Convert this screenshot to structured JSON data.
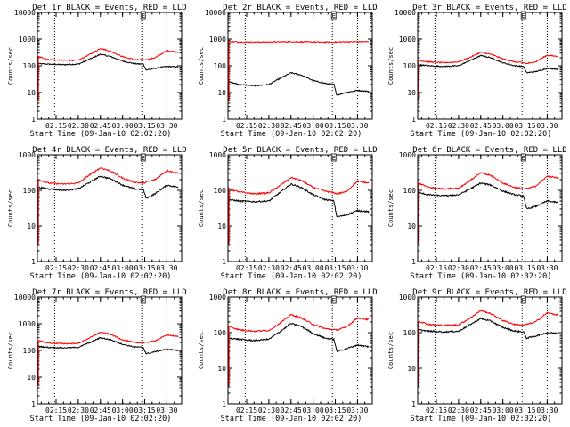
{
  "figure": {
    "colors": {
      "events": "#000000",
      "lld": "#ff0000",
      "background": "#ffffff",
      "axes": "#000000"
    }
  },
  "chart_data": [
    {
      "type": "line",
      "title": "Det 1r BLACK = Events, RED = LLD",
      "xlabel": "Start Time (09-Jan-10 02:02:20)",
      "ylabel": "Counts/sec",
      "ylim": [
        1,
        10000
      ],
      "yscale": "log",
      "xlim": [
        "02:02:20",
        "03:40"
      ],
      "xticks": [
        "02:15",
        "02:30",
        "02:45",
        "03:00",
        "03:15",
        "03:30"
      ],
      "ytick_labels": [
        "1",
        "10",
        "100",
        "1000",
        "10000"
      ],
      "vlines": [
        "02:14",
        "03:13",
        "03:30"
      ],
      "markers": [
        "E"
      ],
      "series": [
        {
          "name": "Events",
          "color": "#000000",
          "x": [
            "02:03",
            "02:10",
            "02:20",
            "02:30",
            "02:38",
            "02:45",
            "02:52",
            "03:00",
            "03:08",
            "03:14",
            "03:16",
            "03:22",
            "03:30",
            "03:38"
          ],
          "values": [
            120,
            115,
            110,
            115,
            180,
            270,
            220,
            150,
            120,
            115,
            70,
            80,
            95,
            90
          ]
        },
        {
          "name": "LLD",
          "color": "#ff0000",
          "x": [
            "02:03",
            "02:10",
            "02:20",
            "02:30",
            "02:38",
            "02:45",
            "02:52",
            "03:00",
            "03:08",
            "03:14",
            "03:16",
            "03:22",
            "03:30",
            "03:38"
          ],
          "values": [
            220,
            170,
            160,
            160,
            270,
            450,
            350,
            220,
            170,
            165,
            170,
            200,
            370,
            320
          ]
        }
      ]
    },
    {
      "type": "line",
      "title": "Det 2r BLACK = Events, RED = LLD",
      "xlabel": "Start Time (09-Jan-10 02:02:20)",
      "ylabel": "Counts/sec",
      "ylim": [
        1,
        10000
      ],
      "yscale": "log",
      "xlim": [
        "02:02:20",
        "03:40"
      ],
      "xticks": [
        "02:15",
        "02:30",
        "02:45",
        "03:00",
        "03:15",
        "03:30"
      ],
      "ytick_labels": [
        "1",
        "10",
        "100",
        "1000",
        "10000"
      ],
      "vlines": [
        "02:14",
        "03:13",
        "03:30"
      ],
      "markers": [
        "E"
      ],
      "series": [
        {
          "name": "Events",
          "color": "#000000",
          "x": [
            "02:03",
            "02:10",
            "02:20",
            "02:30",
            "02:38",
            "02:45",
            "02:52",
            "03:00",
            "03:08",
            "03:14",
            "03:16",
            "03:22",
            "03:30",
            "03:38"
          ],
          "values": [
            25,
            20,
            18,
            20,
            35,
            55,
            45,
            28,
            22,
            20,
            8,
            10,
            12,
            11
          ]
        },
        {
          "name": "LLD",
          "color": "#ff0000",
          "x": [
            "02:03",
            "02:10",
            "02:20",
            "02:30",
            "02:38",
            "02:45",
            "02:52",
            "03:00",
            "03:08",
            "03:14",
            "03:16",
            "03:22",
            "03:30",
            "03:38"
          ],
          "values": [
            800,
            780,
            770,
            780,
            790,
            800,
            790,
            780,
            770,
            770,
            780,
            790,
            800,
            800
          ]
        }
      ]
    },
    {
      "type": "line",
      "title": "Det 3r BLACK = Events, RED = LLD",
      "xlabel": "Start Time (09-Jan-10 02:02:20)",
      "ylabel": "Counts/sec",
      "ylim": [
        1,
        10000
      ],
      "yscale": "log",
      "xlim": [
        "02:02:20",
        "03:40"
      ],
      "xticks": [
        "02:15",
        "02:30",
        "02:45",
        "03:00",
        "03:15",
        "03:30"
      ],
      "ytick_labels": [
        "1",
        "10",
        "100",
        "1000",
        "10000"
      ],
      "vlines": [
        "02:14",
        "03:13",
        "03:30"
      ],
      "markers": [
        "E"
      ],
      "series": [
        {
          "name": "Events",
          "color": "#000000",
          "x": [
            "02:03",
            "02:10",
            "02:20",
            "02:30",
            "02:38",
            "02:45",
            "02:52",
            "03:00",
            "03:08",
            "03:14",
            "03:16",
            "03:22",
            "03:30",
            "03:38"
          ],
          "values": [
            110,
            100,
            95,
            100,
            160,
            240,
            200,
            130,
            100,
            95,
            55,
            60,
            80,
            75
          ]
        },
        {
          "name": "LLD",
          "color": "#ff0000",
          "x": [
            "02:03",
            "02:10",
            "02:20",
            "02:30",
            "02:38",
            "02:45",
            "02:52",
            "03:00",
            "03:08",
            "03:14",
            "03:16",
            "03:22",
            "03:30",
            "03:38"
          ],
          "values": [
            160,
            140,
            130,
            140,
            210,
            320,
            270,
            180,
            140,
            130,
            120,
            140,
            250,
            220
          ]
        }
      ]
    },
    {
      "type": "line",
      "title": "Det 4r BLACK = Events, RED = LLD",
      "xlabel": "Start Time (09-Jan-10 02:02:20)",
      "ylabel": "Counts/sec",
      "ylim": [
        1,
        1000
      ],
      "yscale": "log",
      "xlim": [
        "02:02:20",
        "03:40"
      ],
      "xticks": [
        "02:15",
        "02:30",
        "02:45",
        "03:00",
        "03:15",
        "03:30"
      ],
      "ytick_labels": [
        "1",
        "10",
        "100",
        "1000"
      ],
      "vlines": [
        "02:14",
        "03:13",
        "03:30"
      ],
      "markers": [
        "E"
      ],
      "series": [
        {
          "name": "Events",
          "color": "#000000",
          "x": [
            "02:03",
            "02:10",
            "02:20",
            "02:30",
            "02:38",
            "02:45",
            "02:52",
            "03:00",
            "03:08",
            "03:14",
            "03:16",
            "03:22",
            "03:30",
            "03:38"
          ],
          "values": [
            120,
            110,
            100,
            110,
            170,
            250,
            210,
            140,
            110,
            105,
            60,
            80,
            140,
            120
          ]
        },
        {
          "name": "LLD",
          "color": "#ff0000",
          "x": [
            "02:03",
            "02:10",
            "02:20",
            "02:30",
            "02:38",
            "02:45",
            "02:52",
            "03:00",
            "03:08",
            "03:14",
            "03:16",
            "03:22",
            "03:30",
            "03:38"
          ],
          "values": [
            200,
            160,
            150,
            160,
            280,
            430,
            350,
            220,
            170,
            160,
            170,
            200,
            360,
            300
          ]
        }
      ]
    },
    {
      "type": "line",
      "title": "Det 5r BLACK = Events, RED = LLD",
      "xlabel": "Start Time (09-Jan-10 02:02:20)",
      "ylabel": "Counts/sec",
      "ylim": [
        1,
        1000
      ],
      "yscale": "log",
      "xlim": [
        "02:02:20",
        "03:40"
      ],
      "xticks": [
        "02:15",
        "02:30",
        "02:45",
        "03:00",
        "03:15",
        "03:30"
      ],
      "ytick_labels": [
        "1",
        "10",
        "100",
        "1000"
      ],
      "vlines": [
        "02:14",
        "03:13",
        "03:30"
      ],
      "markers": [
        "E"
      ],
      "series": [
        {
          "name": "Events",
          "color": "#000000",
          "x": [
            "02:03",
            "02:10",
            "02:20",
            "02:30",
            "02:38",
            "02:45",
            "02:52",
            "03:00",
            "03:08",
            "03:14",
            "03:16",
            "03:22",
            "03:30",
            "03:38"
          ],
          "values": [
            55,
            50,
            48,
            50,
            90,
            150,
            120,
            75,
            55,
            50,
            18,
            20,
            27,
            25
          ]
        },
        {
          "name": "LLD",
          "color": "#ff0000",
          "x": [
            "02:03",
            "02:10",
            "02:20",
            "02:30",
            "02:38",
            "02:45",
            "02:52",
            "03:00",
            "03:08",
            "03:14",
            "03:16",
            "03:22",
            "03:30",
            "03:38"
          ],
          "values": [
            110,
            90,
            80,
            85,
            140,
            230,
            190,
            120,
            95,
            85,
            80,
            90,
            180,
            160
          ]
        }
      ]
    },
    {
      "type": "line",
      "title": "Det 6r BLACK = Events, RED = LLD",
      "xlabel": "Start Time (09-Jan-10 02:02:20)",
      "ylabel": "Counts/sec",
      "ylim": [
        1,
        1000
      ],
      "yscale": "log",
      "xlim": [
        "02:02:20",
        "03:40"
      ],
      "xticks": [
        "02:15",
        "02:30",
        "02:45",
        "03:00",
        "03:15",
        "03:30"
      ],
      "ytick_labels": [
        "1",
        "10",
        "100",
        "1000"
      ],
      "vlines": [
        "02:14",
        "03:13",
        "03:30"
      ],
      "markers": [
        "E"
      ],
      "series": [
        {
          "name": "Events",
          "color": "#000000",
          "x": [
            "02:03",
            "02:10",
            "02:20",
            "02:30",
            "02:38",
            "02:45",
            "02:52",
            "03:00",
            "03:08",
            "03:14",
            "03:16",
            "03:22",
            "03:30",
            "03:38"
          ],
          "values": [
            85,
            75,
            70,
            75,
            110,
            160,
            140,
            95,
            75,
            70,
            30,
            35,
            50,
            45
          ]
        },
        {
          "name": "LLD",
          "color": "#ff0000",
          "x": [
            "02:03",
            "02:10",
            "02:20",
            "02:30",
            "02:38",
            "02:45",
            "02:52",
            "03:00",
            "03:08",
            "03:14",
            "03:16",
            "03:22",
            "03:30",
            "03:38"
          ],
          "values": [
            160,
            120,
            110,
            115,
            190,
            310,
            260,
            160,
            120,
            110,
            110,
            130,
            250,
            220
          ]
        }
      ]
    },
    {
      "type": "line",
      "title": "Det 7r BLACK = Events, RED = LLD",
      "xlabel": "Start Time (09-Jan-10 02:02:20)",
      "ylabel": "Counts/sec",
      "ylim": [
        1,
        10000
      ],
      "yscale": "log",
      "xlim": [
        "02:02:20",
        "03:40"
      ],
      "xticks": [
        "02:15",
        "02:30",
        "02:45",
        "03:00",
        "03:15",
        "03:30"
      ],
      "ytick_labels": [
        "1",
        "10",
        "100",
        "1000",
        "10000"
      ],
      "vlines": [
        "02:14",
        "03:13",
        "03:30"
      ],
      "markers": [
        "E"
      ],
      "series": [
        {
          "name": "Events",
          "color": "#000000",
          "x": [
            "02:03",
            "02:10",
            "02:20",
            "02:30",
            "02:38",
            "02:45",
            "02:52",
            "03:00",
            "03:08",
            "03:14",
            "03:16",
            "03:22",
            "03:30",
            "03:38"
          ],
          "values": [
            140,
            130,
            125,
            130,
            200,
            300,
            250,
            170,
            135,
            130,
            75,
            90,
            110,
            100
          ]
        },
        {
          "name": "LLD",
          "color": "#ff0000",
          "x": [
            "02:03",
            "02:10",
            "02:20",
            "02:30",
            "02:38",
            "02:45",
            "02:52",
            "03:00",
            "03:08",
            "03:14",
            "03:16",
            "03:22",
            "03:30",
            "03:38"
          ],
          "values": [
            230,
            190,
            180,
            185,
            300,
            480,
            400,
            250,
            200,
            190,
            200,
            230,
            380,
            330
          ]
        }
      ]
    },
    {
      "type": "line",
      "title": "Det 8r BLACK = Events, RED = LLD",
      "xlabel": "Start Time (09-Jan-10 02:02:20)",
      "ylabel": "Counts/sec",
      "ylim": [
        1,
        1000
      ],
      "yscale": "log",
      "xlim": [
        "02:02:20",
        "03:40"
      ],
      "xticks": [
        "02:15",
        "02:30",
        "02:45",
        "03:00",
        "03:15",
        "03:30"
      ],
      "ytick_labels": [
        "1",
        "10",
        "100",
        "1000"
      ],
      "vlines": [
        "02:14",
        "03:13",
        "03:30"
      ],
      "markers": [
        "E"
      ],
      "series": [
        {
          "name": "Events",
          "color": "#000000",
          "x": [
            "02:03",
            "02:10",
            "02:20",
            "02:30",
            "02:38",
            "02:45",
            "02:52",
            "03:00",
            "03:08",
            "03:14",
            "03:16",
            "03:22",
            "03:30",
            "03:38"
          ],
          "values": [
            70,
            65,
            60,
            65,
            110,
            180,
            150,
            95,
            70,
            65,
            30,
            35,
            45,
            40
          ]
        },
        {
          "name": "LLD",
          "color": "#ff0000",
          "x": [
            "02:03",
            "02:10",
            "02:20",
            "02:30",
            "02:38",
            "02:45",
            "02:52",
            "03:00",
            "03:08",
            "03:14",
            "03:16",
            "03:22",
            "03:30",
            "03:38"
          ],
          "values": [
            150,
            120,
            110,
            115,
            190,
            320,
            260,
            170,
            130,
            120,
            120,
            140,
            260,
            230
          ]
        }
      ]
    },
    {
      "type": "line",
      "title": "Det 9r BLACK = Events, RED = LLD",
      "xlabel": "Start Time (09-Jan-10 02:02:20)",
      "ylabel": "Counts/sec",
      "ylim": [
        1,
        1000
      ],
      "yscale": "log",
      "xlim": [
        "02:02:20",
        "03:40"
      ],
      "xticks": [
        "02:15",
        "02:30",
        "02:45",
        "03:00",
        "03:15",
        "03:30"
      ],
      "ytick_labels": [
        "1",
        "10",
        "100",
        "1000"
      ],
      "vlines": [
        "02:14",
        "03:13",
        "03:30"
      ],
      "markers": [
        "E"
      ],
      "series": [
        {
          "name": "Events",
          "color": "#000000",
          "x": [
            "02:03",
            "02:10",
            "02:20",
            "02:30",
            "02:38",
            "02:45",
            "02:52",
            "03:00",
            "03:08",
            "03:14",
            "03:16",
            "03:22",
            "03:30",
            "03:38"
          ],
          "values": [
            120,
            110,
            105,
            110,
            170,
            250,
            210,
            140,
            110,
            105,
            70,
            80,
            100,
            95
          ]
        },
        {
          "name": "LLD",
          "color": "#ff0000",
          "x": [
            "02:03",
            "02:10",
            "02:20",
            "02:30",
            "02:38",
            "02:45",
            "02:52",
            "03:00",
            "03:08",
            "03:14",
            "03:16",
            "03:22",
            "03:30",
            "03:38"
          ],
          "values": [
            210,
            170,
            160,
            165,
            260,
            420,
            340,
            220,
            170,
            160,
            170,
            200,
            360,
            310
          ]
        }
      ]
    }
  ]
}
